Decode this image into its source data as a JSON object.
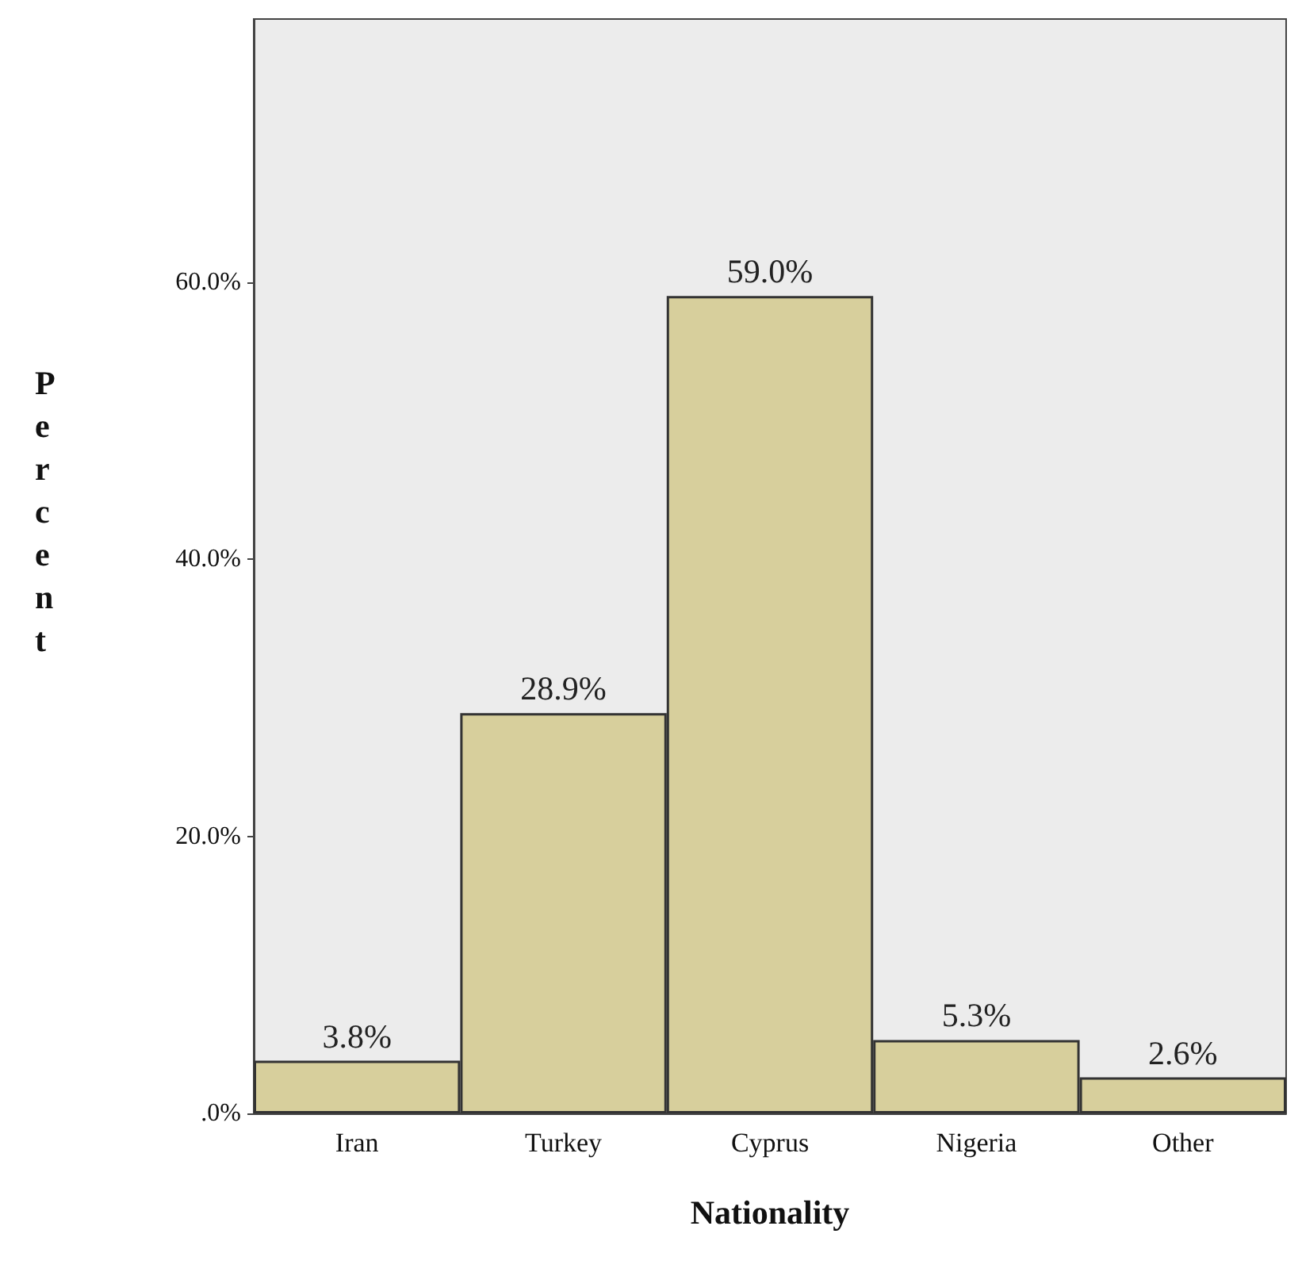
{
  "chart_data": {
    "type": "bar",
    "xlabel": "Nationality",
    "ylabel": "Percent",
    "categories": [
      "Iran",
      "Turkey",
      "Cyprus",
      "Nigeria",
      "Other"
    ],
    "values": [
      3.8,
      28.9,
      59.0,
      5.3,
      2.6
    ],
    "value_labels": [
      "3.8%",
      "28.9%",
      "59.0%",
      "5.3%",
      "2.6%"
    ],
    "color": "#d7cf9c",
    "ylim": [
      0,
      79
    ],
    "yticks": [
      {
        "value": 0,
        "label": ".0%"
      },
      {
        "value": 20,
        "label": "20.0%"
      },
      {
        "value": 40,
        "label": "40.0%"
      },
      {
        "value": 60,
        "label": "60.0%"
      }
    ],
    "grid": false
  }
}
